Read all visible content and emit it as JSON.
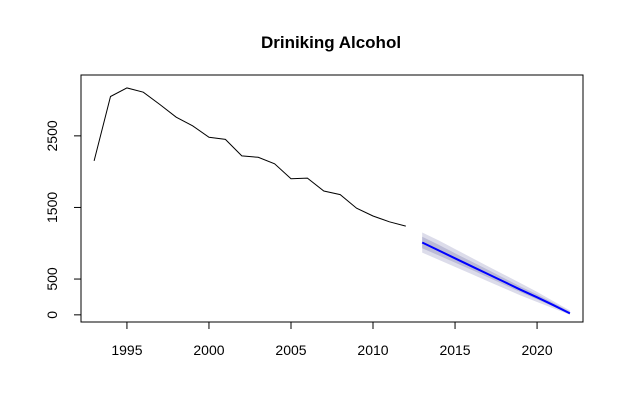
{
  "chart_data": {
    "type": "line",
    "title": "Driniking Alcohol",
    "xlabel": "",
    "ylabel": "",
    "xlim": [
      1992.2,
      2022.8
    ],
    "ylim": [
      -100,
      3350
    ],
    "x_ticks": [
      1995,
      2000,
      2005,
      2010,
      2015,
      2020
    ],
    "y_ticks": [
      0,
      500,
      1500,
      2500
    ],
    "grid": false,
    "legend": "none",
    "series": [
      {
        "kind": "observed",
        "color": "#000000",
        "x": [
          1993,
          1994,
          1995,
          1996,
          1997,
          1998,
          1999,
          2000,
          2001,
          2002,
          2003,
          2004,
          2005,
          2006,
          2007,
          2008,
          2009,
          2010,
          2011,
          2012
        ],
        "y": [
          2150,
          3050,
          3170,
          3110,
          2940,
          2760,
          2640,
          2480,
          2450,
          2220,
          2200,
          2110,
          1900,
          1910,
          1730,
          1680,
          1490,
          1380,
          1300,
          1240
        ]
      },
      {
        "kind": "forecast",
        "color": "#0000ff",
        "x": [
          2013,
          2014,
          2015,
          2016,
          2017,
          2018,
          2019,
          2020,
          2021,
          2022
        ],
        "y": [
          1010,
          900,
          790,
          680,
          570,
          460,
          350,
          245,
          135,
          20
        ],
        "band_outer": {
          "color": "#dcdcea",
          "lower": [
            870,
            770,
            670,
            570,
            470,
            370,
            270,
            180,
            90,
            0
          ],
          "upper": [
            1150,
            1040,
            920,
            800,
            680,
            560,
            440,
            320,
            190,
            60
          ]
        },
        "band_inner": {
          "color": "#bbbbd6",
          "lower": [
            930,
            830,
            730,
            630,
            525,
            420,
            315,
            215,
            115,
            10
          ],
          "upper": [
            1090,
            980,
            860,
            745,
            630,
            510,
            395,
            285,
            165,
            45
          ]
        }
      }
    ]
  }
}
